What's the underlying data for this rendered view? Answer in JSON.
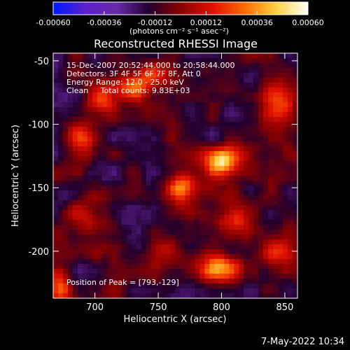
{
  "chart_data": {
    "type": "heatmap",
    "title": "Reconstructed RHESSI Image",
    "xlabel": "Heliocentric X (arcsec)",
    "ylabel": "Heliocentric Y (arcsec)",
    "xlim": [
      667,
      860
    ],
    "ylim": [
      -237,
      -44
    ],
    "x_ticks": [
      700,
      750,
      800,
      850
    ],
    "y_ticks": [
      -50,
      -100,
      -150,
      -200
    ],
    "colorbar": {
      "min": -0.0006,
      "max": 0.0006,
      "ticks": [
        "-0.00060",
        "-0.00036",
        "-0.00012",
        "0.00012",
        "0.00036",
        "0.00060"
      ],
      "unit_label": "(photons cm⁻² s⁻¹ asec⁻²)",
      "colors": [
        "#0018ff",
        "#5a1fd0",
        "#6a2aa8",
        "#22002e",
        "#8a0000",
        "#e01000",
        "#ff6a00",
        "#ffd040",
        "#ffffff"
      ]
    },
    "info_lines": [
      "15-Dec-2007 20:52:44.000 to 20:58:44.000",
      "Detectors: 3F 4F 5F 6F 7F 8F, Att 0",
      "Energy Range: 12.0 - 25.0 keV",
      "Clean     Total counts: 9.83E+03"
    ],
    "peak_label": "Position of Peak = [793,-129]",
    "peak": {
      "x": 793,
      "y": -129
    },
    "bright_sources": [
      {
        "x": 800,
        "y": -130,
        "value": 0.00058,
        "sx": 10,
        "sy": 8
      },
      {
        "x": 770,
        "y": -150,
        "value": 0.00048,
        "sx": 9,
        "sy": 9
      },
      {
        "x": 800,
        "y": -213,
        "value": 0.00045,
        "sx": 12,
        "sy": 8
      },
      {
        "x": 705,
        "y": -80,
        "value": 0.0004,
        "sx": 8,
        "sy": 8
      },
      {
        "x": 730,
        "y": -70,
        "value": 0.00038,
        "sx": 11,
        "sy": 7
      },
      {
        "x": 810,
        "y": -175,
        "value": 0.00035,
        "sx": 9,
        "sy": 10
      },
      {
        "x": 673,
        "y": -230,
        "value": 0.0004,
        "sx": 7,
        "sy": 10
      },
      {
        "x": 690,
        "y": -115,
        "value": 0.0003,
        "sx": 9,
        "sy": 12
      },
      {
        "x": 845,
        "y": -85,
        "value": 0.0003,
        "sx": 10,
        "sy": 12
      },
      {
        "x": 845,
        "y": -200,
        "value": 0.00028,
        "sx": 9,
        "sy": 9
      },
      {
        "x": 695,
        "y": -175,
        "value": 0.00022,
        "sx": 10,
        "sy": 10
      },
      {
        "x": 752,
        "y": -200,
        "value": 0.0002,
        "sx": 8,
        "sy": 8
      },
      {
        "x": 745,
        "y": -60,
        "value": 0.00022,
        "sx": 10,
        "sy": 6
      }
    ]
  },
  "footer": {
    "timestamp": "7-May-2022 10:34"
  }
}
